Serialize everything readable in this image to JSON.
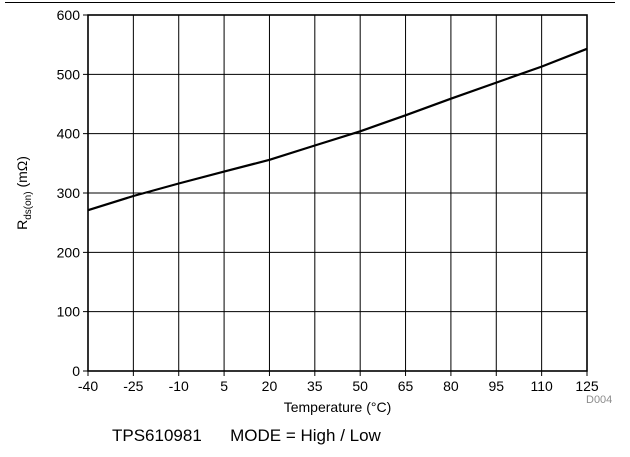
{
  "chart_data": {
    "type": "line",
    "xlabel": "Temperature (°C)",
    "ylabel_main": "R",
    "ylabel_sub": "ds(on)",
    "ylabel_unit": " (mΩ)",
    "xticks": [
      -40,
      -25,
      -10,
      5,
      20,
      35,
      50,
      65,
      80,
      95,
      110,
      125
    ],
    "yticks": [
      0,
      100,
      200,
      300,
      400,
      500,
      600
    ],
    "xlim": [
      -40,
      125
    ],
    "ylim": [
      0,
      600
    ],
    "grid": true,
    "series": [
      {
        "x": [
          -40,
          -25,
          -10,
          5,
          20,
          35,
          50,
          65,
          80,
          95,
          110,
          125
        ],
        "y": [
          271,
          295,
          316,
          336,
          356,
          380,
          404,
          431,
          459,
          486,
          513,
          543
        ]
      }
    ]
  },
  "caption": "TPS610981      MODE = High / Low",
  "code": "D004"
}
